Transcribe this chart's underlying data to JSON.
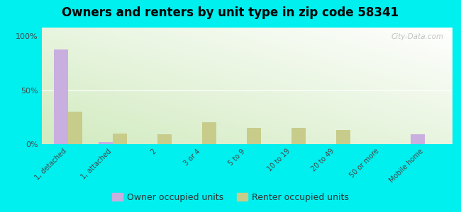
{
  "title": "Owners and renters by unit type in zip code 58341",
  "categories": [
    "1, detached",
    "1, attached",
    "2",
    "3 or 4",
    "5 to 9",
    "10 to 19",
    "20 to 49",
    "50 or more",
    "Mobile home"
  ],
  "owner_values": [
    88,
    2,
    0,
    0,
    0,
    0,
    0,
    0,
    9
  ],
  "renter_values": [
    30,
    10,
    9,
    20,
    15,
    15,
    13,
    0,
    0
  ],
  "owner_color": "#c9aee0",
  "renter_color": "#c8cc8a",
  "bg_color_top_left": "#d6eebb",
  "bg_color_top_right": "#e8f4e8",
  "bg_color_bottom": "#f0f8e8",
  "outer_bg": "#00efef",
  "ylabel_ticks": [
    "0%",
    "50%",
    "100%"
  ],
  "yticks": [
    0,
    50,
    100
  ],
  "ylim": [
    0,
    108
  ],
  "bar_width": 0.32,
  "legend_owner": "Owner occupied units",
  "legend_renter": "Renter occupied units",
  "watermark": "City-Data.com",
  "title_fontsize": 12,
  "tick_fontsize": 7,
  "legend_fontsize": 9
}
